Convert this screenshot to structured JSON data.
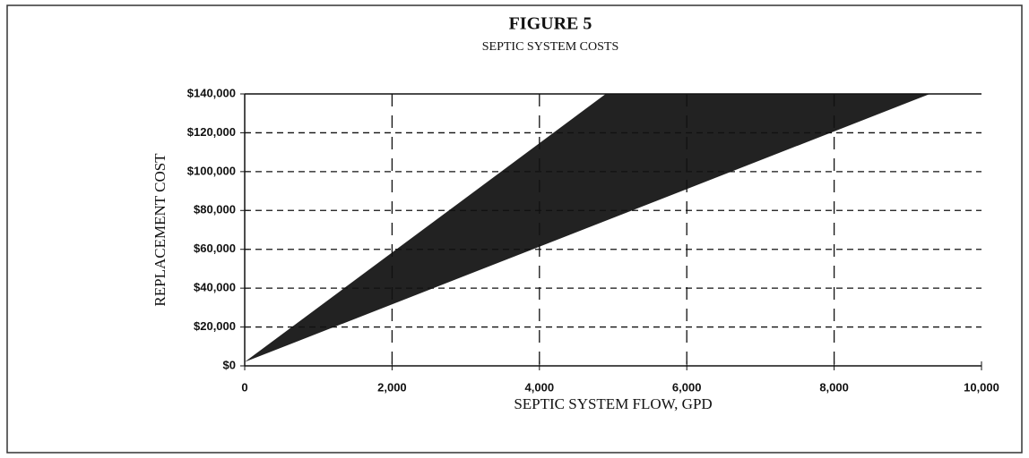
{
  "chart_data": {
    "type": "area_band",
    "title": "FIGURE 5",
    "subtitle": "SEPTIC SYSTEM COSTS",
    "x_label": "SEPTIC SYSTEM FLOW, GPD",
    "y_label": "REPLACEMENT COST",
    "color": "#222222",
    "series": [
      {
        "x": [
          0,
          4900,
          9300
        ],
        "values": [
          2000,
          140000,
          140000
        ]
      },
      {
        "x": [
          0,
          9300
        ],
        "values": [
          2000,
          140000
        ]
      }
    ],
    "xlim": [
      0,
      10000
    ],
    "xticks": [
      0,
      {
        "value": 2000,
        "label": "2,000"
      },
      {
        "value": 4000,
        "label": "4,000"
      },
      {
        "value": 6000,
        "label": "6,000"
      },
      {
        "value": 8000,
        "label": "8,000"
      },
      {
        "value": 10000,
        "label": "10,000"
      }
    ],
    "ylim": [
      0,
      140000
    ],
    "yticks": [
      {
        "value": 0,
        "label": "$0"
      },
      {
        "value": 20000,
        "label": "$20,000"
      },
      {
        "value": 40000,
        "label": "$40,000"
      },
      {
        "value": 60000,
        "label": "$60,000"
      },
      {
        "value": 80000,
        "label": "$80,000"
      },
      {
        "value": 100000,
        "label": "$100,000"
      },
      {
        "value": 120000,
        "label": "$120,000"
      },
      {
        "value": 140000,
        "label": "$140,000"
      }
    ],
    "grid": true
  }
}
